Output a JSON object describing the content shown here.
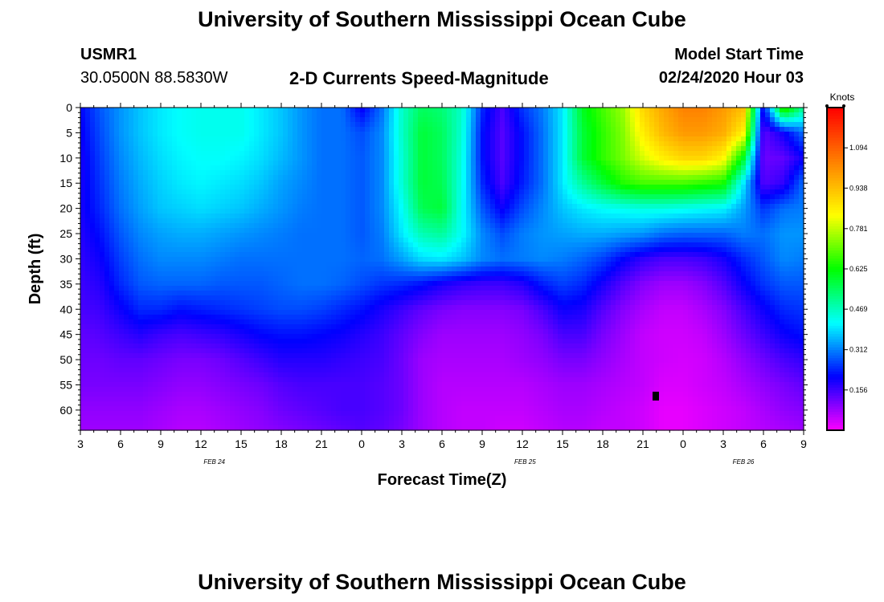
{
  "page": {
    "title_top": "University of Southern Mississippi Ocean Cube",
    "title_bottom": "University of Southern Mississippi Ocean Cube",
    "station": {
      "id": "USMR1",
      "coords": "30.0500N 88.5830W"
    },
    "plot_title": "2-D Currents Speed-Magnitude",
    "model": {
      "label": "Model Start Time",
      "value": "02/24/2020 Hour 03"
    }
  },
  "chart_data": {
    "type": "heatmap",
    "title": "2-D Currents Speed-Magnitude",
    "xlabel": "Forecast Time(Z)",
    "ylabel": "Depth (ft)",
    "x_tick_labels": [
      "3",
      "6",
      "9",
      "12",
      "15",
      "18",
      "21",
      "0",
      "3",
      "6",
      "9",
      "12",
      "15",
      "18",
      "21",
      "0",
      "3",
      "6",
      "9"
    ],
    "x_hours_from_start": [
      0,
      3,
      6,
      9,
      12,
      15,
      18,
      21,
      24,
      27,
      30,
      33,
      36,
      39,
      42,
      45,
      48,
      51,
      54
    ],
    "xlim_hours": [
      0,
      54
    ],
    "date_labels": [
      {
        "text": "FEB 24",
        "hour": 10.0
      },
      {
        "text": "FEB 25",
        "hour": 33.2
      },
      {
        "text": "FEB 26",
        "hour": 49.5
      }
    ],
    "y_ticks": [
      0,
      5,
      10,
      15,
      20,
      25,
      30,
      35,
      40,
      45,
      50,
      55,
      60
    ],
    "ylim": [
      0,
      64
    ],
    "y_inverted": true,
    "colorbar": {
      "unit": "Knots",
      "range": [
        0,
        1.25
      ],
      "ticks": [
        0.156,
        0.312,
        0.469,
        0.625,
        0.781,
        0.938,
        1.094
      ],
      "tick_labels": [
        "0.156",
        "0.312",
        "0.469",
        "0.625",
        "0.781",
        "0.938",
        "1.094"
      ],
      "colormap": [
        "#ff00ff",
        "#0000ff",
        "#00ffff",
        "#00ff00",
        "#ffff00",
        "#ff8000",
        "#ff0000"
      ]
    },
    "depth_grid": [
      0,
      5,
      10,
      15,
      20,
      25,
      30,
      35,
      40,
      45,
      50,
      55,
      60,
      64
    ],
    "hour_grid": [
      0,
      1.5,
      3,
      4.5,
      6,
      7.5,
      9,
      10.5,
      12,
      13.5,
      15,
      16.5,
      18,
      19.5,
      21,
      22.5,
      24,
      25.5,
      27,
      28.5,
      30,
      31.5,
      33,
      34.5,
      36,
      37.5,
      39,
      40.5,
      42,
      43.5,
      45,
      46.5,
      48,
      49.5,
      51,
      52.5,
      54
    ],
    "speed": [
      [
        0.21,
        0.28,
        0.33,
        0.37,
        0.4,
        0.42,
        0.43,
        0.43,
        0.43,
        0.4,
        0.37,
        0.33,
        0.3,
        0.3,
        0.2,
        0.3,
        0.46,
        0.55,
        0.53,
        0.46,
        0.24,
        0.15,
        0.25,
        0.31,
        0.4,
        0.6,
        0.68,
        0.75,
        0.9,
        0.98,
        1.04,
        1.04,
        1.0,
        0.94,
        0.2,
        0.7,
        0.5
      ],
      [
        0.2,
        0.27,
        0.33,
        0.37,
        0.4,
        0.42,
        0.43,
        0.43,
        0.43,
        0.4,
        0.37,
        0.33,
        0.3,
        0.3,
        0.27,
        0.32,
        0.46,
        0.58,
        0.55,
        0.45,
        0.22,
        0.14,
        0.22,
        0.3,
        0.4,
        0.58,
        0.66,
        0.73,
        0.86,
        0.95,
        1.0,
        1.0,
        0.97,
        0.85,
        0.13,
        0.2,
        0.3
      ],
      [
        0.19,
        0.26,
        0.32,
        0.36,
        0.39,
        0.41,
        0.42,
        0.42,
        0.41,
        0.39,
        0.36,
        0.33,
        0.3,
        0.3,
        0.28,
        0.32,
        0.45,
        0.58,
        0.55,
        0.44,
        0.22,
        0.14,
        0.22,
        0.3,
        0.4,
        0.58,
        0.66,
        0.72,
        0.8,
        0.86,
        0.9,
        0.9,
        0.85,
        0.6,
        0.12,
        0.13,
        0.2
      ],
      [
        0.19,
        0.25,
        0.31,
        0.35,
        0.38,
        0.4,
        0.41,
        0.4,
        0.39,
        0.37,
        0.34,
        0.32,
        0.3,
        0.3,
        0.28,
        0.32,
        0.45,
        0.58,
        0.56,
        0.43,
        0.24,
        0.15,
        0.23,
        0.3,
        0.4,
        0.5,
        0.58,
        0.65,
        0.68,
        0.68,
        0.68,
        0.66,
        0.64,
        0.4,
        0.14,
        0.17,
        0.3
      ],
      [
        0.19,
        0.24,
        0.3,
        0.34,
        0.37,
        0.38,
        0.39,
        0.38,
        0.37,
        0.35,
        0.33,
        0.31,
        0.3,
        0.3,
        0.28,
        0.32,
        0.42,
        0.56,
        0.58,
        0.42,
        0.28,
        0.2,
        0.27,
        0.32,
        0.37,
        0.4,
        0.42,
        0.43,
        0.44,
        0.44,
        0.43,
        0.42,
        0.41,
        0.34,
        0.25,
        0.3,
        0.31
      ],
      [
        0.18,
        0.22,
        0.28,
        0.32,
        0.34,
        0.35,
        0.35,
        0.34,
        0.33,
        0.32,
        0.31,
        0.3,
        0.3,
        0.3,
        0.28,
        0.31,
        0.4,
        0.48,
        0.5,
        0.42,
        0.32,
        0.27,
        0.31,
        0.33,
        0.34,
        0.35,
        0.35,
        0.34,
        0.33,
        0.3,
        0.29,
        0.29,
        0.29,
        0.31,
        0.3,
        0.33,
        0.33
      ],
      [
        0.17,
        0.2,
        0.26,
        0.3,
        0.32,
        0.32,
        0.32,
        0.31,
        0.3,
        0.3,
        0.3,
        0.3,
        0.3,
        0.3,
        0.29,
        0.3,
        0.34,
        0.39,
        0.4,
        0.37,
        0.32,
        0.3,
        0.31,
        0.32,
        0.31,
        0.29,
        0.26,
        0.21,
        0.17,
        0.15,
        0.15,
        0.16,
        0.19,
        0.24,
        0.28,
        0.32,
        0.31
      ],
      [
        0.16,
        0.18,
        0.24,
        0.28,
        0.29,
        0.29,
        0.29,
        0.28,
        0.28,
        0.28,
        0.29,
        0.3,
        0.3,
        0.29,
        0.27,
        0.25,
        0.24,
        0.22,
        0.19,
        0.17,
        0.16,
        0.16,
        0.18,
        0.23,
        0.26,
        0.24,
        0.19,
        0.14,
        0.1,
        0.08,
        0.08,
        0.1,
        0.14,
        0.2,
        0.25,
        0.28,
        0.28
      ],
      [
        0.15,
        0.16,
        0.2,
        0.24,
        0.24,
        0.22,
        0.23,
        0.24,
        0.25,
        0.26,
        0.27,
        0.27,
        0.26,
        0.24,
        0.22,
        0.19,
        0.16,
        0.13,
        0.11,
        0.1,
        0.1,
        0.1,
        0.11,
        0.15,
        0.2,
        0.19,
        0.14,
        0.1,
        0.07,
        0.05,
        0.05,
        0.07,
        0.1,
        0.15,
        0.2,
        0.24,
        0.25
      ],
      [
        0.13,
        0.14,
        0.16,
        0.18,
        0.16,
        0.15,
        0.16,
        0.17,
        0.19,
        0.21,
        0.22,
        0.22,
        0.21,
        0.2,
        0.18,
        0.16,
        0.13,
        0.1,
        0.08,
        0.08,
        0.08,
        0.08,
        0.09,
        0.11,
        0.15,
        0.15,
        0.11,
        0.08,
        0.05,
        0.04,
        0.04,
        0.05,
        0.08,
        0.12,
        0.16,
        0.2,
        0.22
      ],
      [
        0.12,
        0.12,
        0.13,
        0.13,
        0.12,
        0.11,
        0.11,
        0.12,
        0.14,
        0.16,
        0.18,
        0.18,
        0.18,
        0.17,
        0.16,
        0.15,
        0.12,
        0.08,
        0.07,
        0.07,
        0.07,
        0.07,
        0.08,
        0.09,
        0.11,
        0.11,
        0.09,
        0.07,
        0.05,
        0.04,
        0.035,
        0.04,
        0.06,
        0.09,
        0.12,
        0.15,
        0.17
      ],
      [
        0.11,
        0.11,
        0.11,
        0.11,
        0.1,
        0.09,
        0.09,
        0.1,
        0.11,
        0.12,
        0.14,
        0.15,
        0.15,
        0.15,
        0.15,
        0.14,
        0.12,
        0.08,
        0.06,
        0.06,
        0.06,
        0.06,
        0.06,
        0.07,
        0.08,
        0.08,
        0.07,
        0.06,
        0.05,
        0.03,
        0.03,
        0.04,
        0.05,
        0.07,
        0.09,
        0.11,
        0.13
      ],
      [
        0.09,
        0.09,
        0.09,
        0.09,
        0.08,
        0.07,
        0.07,
        0.08,
        0.09,
        0.1,
        0.12,
        0.13,
        0.14,
        0.15,
        0.15,
        0.14,
        0.12,
        0.08,
        0.06,
        0.05,
        0.05,
        0.05,
        0.05,
        0.06,
        0.07,
        0.07,
        0.06,
        0.05,
        0.04,
        0.02,
        0.02,
        0.03,
        0.04,
        0.05,
        0.07,
        0.09,
        0.1
      ],
      [
        0.08,
        0.08,
        0.08,
        0.08,
        0.07,
        0.06,
        0.06,
        0.07,
        0.08,
        0.09,
        0.1,
        0.11,
        0.12,
        0.13,
        0.14,
        0.13,
        0.11,
        0.08,
        0.06,
        0.05,
        0.05,
        0.04,
        0.04,
        0.05,
        0.06,
        0.06,
        0.05,
        0.05,
        0.04,
        0.02,
        0.02,
        0.03,
        0.04,
        0.05,
        0.06,
        0.07,
        0.08
      ]
    ]
  }
}
